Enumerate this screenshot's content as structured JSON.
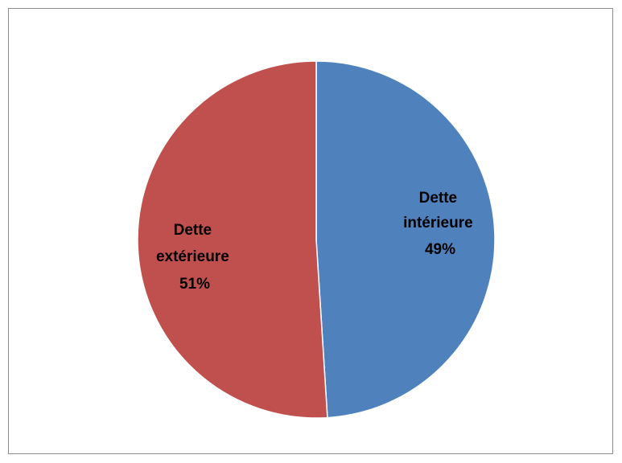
{
  "chart_data": {
    "type": "pie",
    "title": "",
    "slices": [
      {
        "name": "Dette intérieure",
        "label_line1": "Dette",
        "label_line2": "intérieure",
        "percent_label": "49%",
        "value": 49,
        "color": "#4f81bd"
      },
      {
        "name": "Dette extérieure",
        "label_line1": "Dette",
        "label_line2": "extérieure",
        "percent_label": "51%",
        "value": 51,
        "color": "#c0504d"
      }
    ],
    "start_angle_deg": 0,
    "direction": "clockwise",
    "legend": "none",
    "data_labels": "inside"
  }
}
